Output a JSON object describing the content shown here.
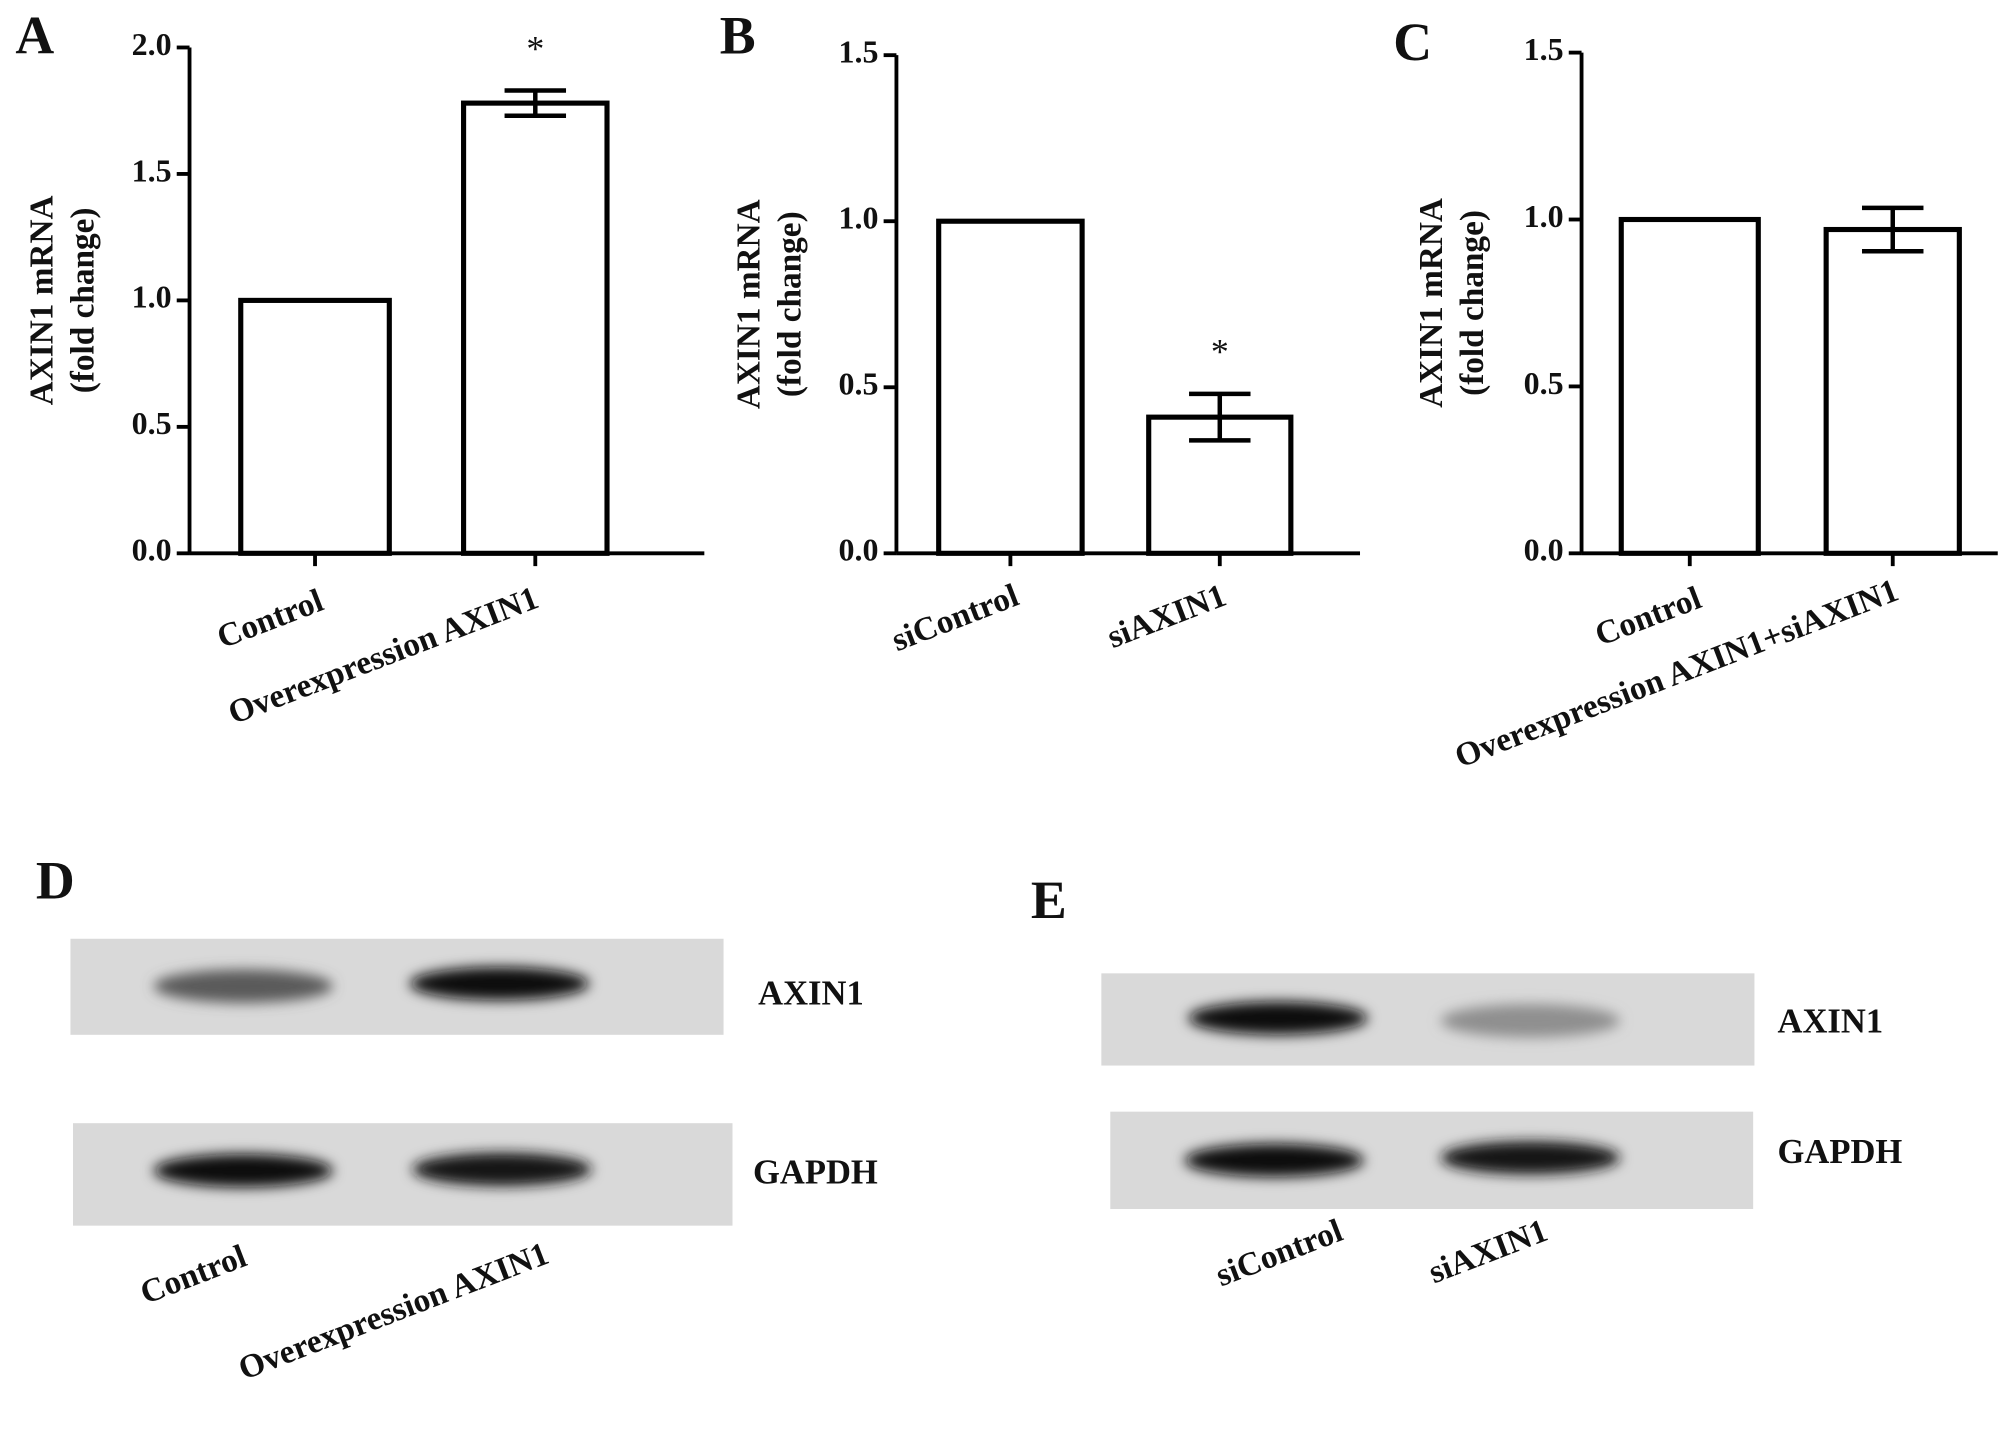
{
  "chart_data": [
    {
      "type": "bar",
      "panel": "A",
      "ylabel": [
        "AXIN1 mRNA",
        "(fold change)"
      ],
      "categories": [
        "Control",
        "Overexpression AXIN1"
      ],
      "values": [
        1.0,
        1.78
      ],
      "errors": [
        null,
        0.05
      ],
      "significance": [
        null,
        "*"
      ],
      "color": "#ffffff",
      "ylim": [
        0,
        2
      ],
      "yticks": [
        {
          "value": 0,
          "label": "0.0"
        },
        {
          "value": 0.5,
          "label": "0.5"
        },
        {
          "value": 1,
          "label": "1.0"
        },
        {
          "value": 1.5,
          "label": "1.5"
        },
        {
          "value": 2,
          "label": "2.0"
        }
      ]
    },
    {
      "type": "bar",
      "panel": "B",
      "ylabel": [
        "AXIN1 mRNA",
        "(fold change)"
      ],
      "categories": [
        "siControl",
        "siAXIN1"
      ],
      "values": [
        1.0,
        0.41
      ],
      "errors": [
        null,
        0.07
      ],
      "significance": [
        null,
        "*"
      ],
      "color": "#ffffff",
      "ylim": [
        0,
        1.5
      ],
      "yticks": [
        {
          "value": 0,
          "label": "0.0"
        },
        {
          "value": 0.5,
          "label": "0.5"
        },
        {
          "value": 1,
          "label": "1.0"
        },
        {
          "value": 1.5,
          "label": "1.5"
        }
      ]
    },
    {
      "type": "bar",
      "panel": "C",
      "ylabel": [
        "AXIN1 mRNA",
        "(fold change)"
      ],
      "categories": [
        "Control",
        "Overexpression AXIN1+siAXIN1"
      ],
      "values": [
        1.0,
        0.97
      ],
      "errors": [
        null,
        0.065
      ],
      "significance": [
        null,
        null
      ],
      "color": "#ffffff",
      "ylim": [
        0,
        1.5
      ],
      "yticks": [
        {
          "value": 0,
          "label": "0.0"
        },
        {
          "value": 0.5,
          "label": "0.5"
        },
        {
          "value": 1,
          "label": "1.0"
        },
        {
          "value": 1.5,
          "label": "1.5"
        }
      ]
    }
  ],
  "blots": [
    {
      "panel": "D",
      "rows": [
        "AXIN1",
        "GAPDH"
      ],
      "lanes": [
        "Control",
        "Overexpression AXIN1"
      ]
    },
    {
      "panel": "E",
      "rows": [
        "AXIN1",
        "GAPDH"
      ],
      "lanes": [
        "siControl",
        "siAXIN1"
      ]
    }
  ]
}
